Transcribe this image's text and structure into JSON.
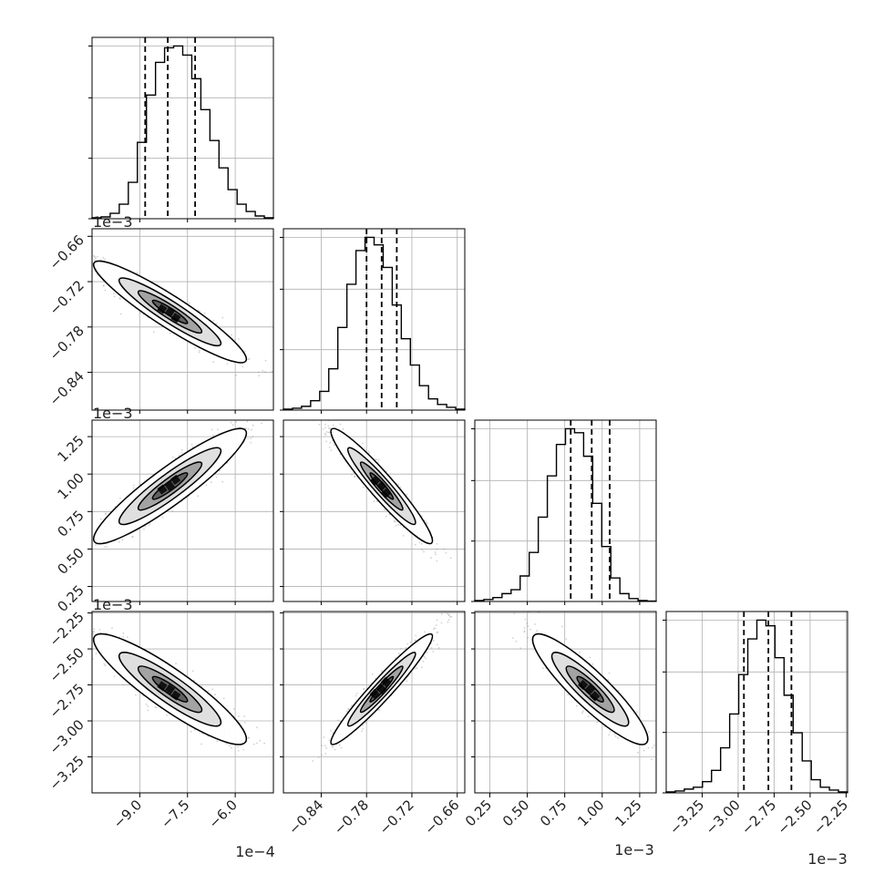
{
  "chart_data": {
    "type": "corner",
    "n_params": 4,
    "grid": true,
    "quantiles": [
      0.16,
      0.5,
      0.84
    ],
    "params": [
      {
        "range": [
          -0.00105,
          -0.00048
        ],
        "ticks": [
          -0.0009,
          -0.00075,
          -0.0006
        ],
        "tick_labels": [
          "−9.0",
          "−7.5",
          "−6.0"
        ],
        "offset": "1e−4",
        "hist": [
          0.5,
          1,
          3,
          8,
          20,
          42,
          68,
          86,
          94,
          95,
          90,
          77,
          60,
          43,
          28,
          16,
          8,
          4,
          1.5,
          0.5
        ],
        "quantile_values": [
          -0.000883,
          -0.000812,
          -0.000726
        ]
      },
      {
        "range": [
          -0.00089,
          -0.00065
        ],
        "ticks": [
          -0.00084,
          -0.00078,
          -0.00072,
          -0.00066
        ],
        "tick_labels": [
          "−0.84",
          "−0.78",
          "−0.72",
          "−0.66"
        ],
        "offset": "1e−3",
        "hist": [
          0.5,
          1,
          2,
          5,
          10,
          22,
          44,
          67,
          85,
          92,
          88,
          76,
          56,
          38,
          24,
          13,
          6,
          3,
          1.5,
          0.5
        ],
        "quantile_values": [
          -0.00078,
          -0.00076,
          -0.00074
        ]
      },
      {
        "range": [
          0.00015,
          0.00136
        ],
        "ticks": [
          0.00025,
          0.0005,
          0.00075,
          0.001,
          0.00125
        ],
        "tick_labels": [
          "0.25",
          "0.50",
          "0.75",
          "1.00",
          "1.25"
        ],
        "offset": "1e−3",
        "hist": [
          0.5,
          1,
          2,
          4,
          6,
          13,
          25,
          43,
          64,
          80,
          88,
          86,
          74,
          50,
          28,
          12,
          4,
          1.5,
          0.5,
          0.2
        ],
        "quantile_values": [
          0.00079,
          0.00093,
          0.00105
        ]
      },
      {
        "range": [
          -0.0035,
          -0.00224
        ],
        "ticks": [
          -0.00325,
          -0.003,
          -0.00275,
          -0.0025,
          -0.00225
        ],
        "tick_labels": [
          "−3.25",
          "−3.00",
          "−2.75",
          "−2.50",
          "−2.25"
        ],
        "offset": "1e−3",
        "hist": [
          0.5,
          1,
          2,
          3,
          6,
          12,
          24,
          42,
          63,
          82,
          92,
          89,
          72,
          52,
          32,
          17,
          7,
          3,
          1.5,
          0.5
        ],
        "quantile_values": [
          -0.00296,
          -0.00279,
          -0.00263
        ]
      }
    ],
    "pairs": [
      {
        "x": 0,
        "y": 1,
        "mean": [
          -0.000805,
          -0.00076
        ],
        "sd": [
          0.0001,
          2.8e-05
        ],
        "rho": -0.93
      },
      {
        "x": 0,
        "y": 2,
        "mean": [
          -0.000805,
          0.00092
        ],
        "sd": [
          0.0001,
          0.00016
        ],
        "rho": 0.92
      },
      {
        "x": 1,
        "y": 2,
        "mean": [
          -0.00076,
          0.00092
        ],
        "sd": [
          2.8e-05,
          0.00016
        ],
        "rho": -0.95
      },
      {
        "x": 0,
        "y": 3,
        "mean": [
          -0.000805,
          -0.00278
        ],
        "sd": [
          0.0001,
          0.00016
        ],
        "rho": -0.9
      },
      {
        "x": 1,
        "y": 3,
        "mean": [
          -0.00076,
          -0.00278
        ],
        "sd": [
          2.8e-05,
          0.00016
        ],
        "rho": 0.96
      },
      {
        "x": 2,
        "y": 3,
        "mean": [
          0.00092,
          -0.00278
        ],
        "sd": [
          0.00016,
          0.00016
        ],
        "rho": -0.9
      }
    ],
    "contour_levels_sigma": [
      1,
      2,
      3
    ]
  }
}
